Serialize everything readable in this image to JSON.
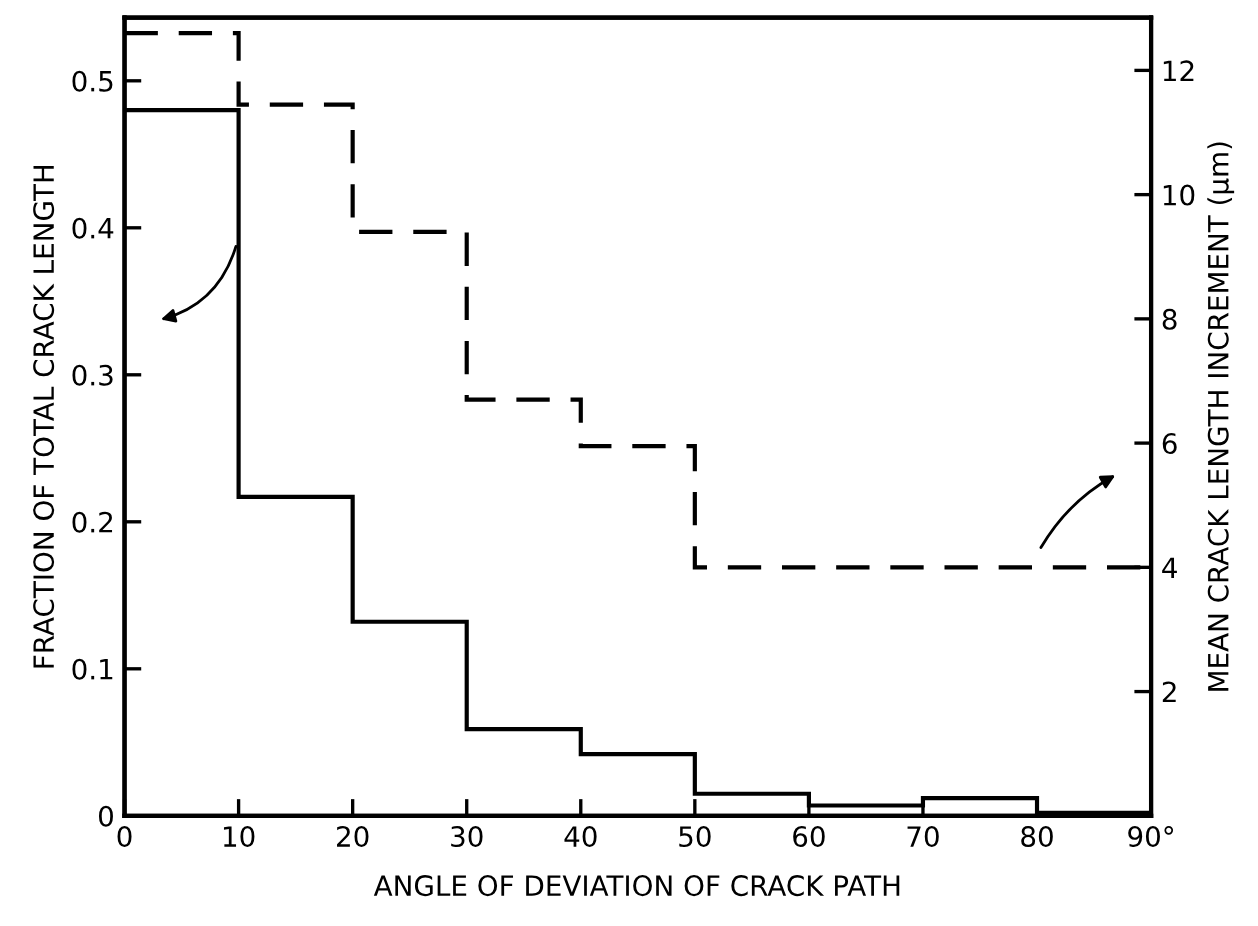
{
  "chart_data": {
    "type": "histogram",
    "xlabel": "ANGLE OF DEVIATION OF CRACK PATH",
    "ylabel": "FRACTION OF TOTAL CRACK LENGTH",
    "y2label": "MEAN CRACK LENGTH INCREMENT (μm)",
    "bins": [
      0,
      10,
      20,
      30,
      40,
      50,
      60,
      70,
      80,
      90
    ],
    "series": [
      {
        "color": "#000000",
        "line_style": "solid",
        "values": [
          0.48,
          0.217,
          0.132,
          0.059,
          0.042,
          0.015,
          0.007,
          0.012,
          0.002
        ]
      },
      {
        "color": "#000000",
        "line_style": "dashed",
        "axis": "y2",
        "values": [
          12.6,
          11.45,
          9.4,
          6.7,
          5.95,
          4,
          4,
          4,
          4
        ]
      }
    ],
    "xlim": [
      0,
      90
    ],
    "xticks": [
      0,
      10,
      20,
      30,
      40,
      50,
      60,
      70,
      80,
      {
        "value": 90,
        "label": "90°"
      }
    ],
    "ylim": [
      0,
      0.543
    ],
    "yticks": [
      0,
      0.1,
      0.2,
      0.3,
      0.4,
      0.5
    ],
    "y2lim": [
      0,
      12.85
    ],
    "y2ticks": [
      2,
      4,
      6,
      8,
      10,
      12
    ],
    "grid": false
  }
}
